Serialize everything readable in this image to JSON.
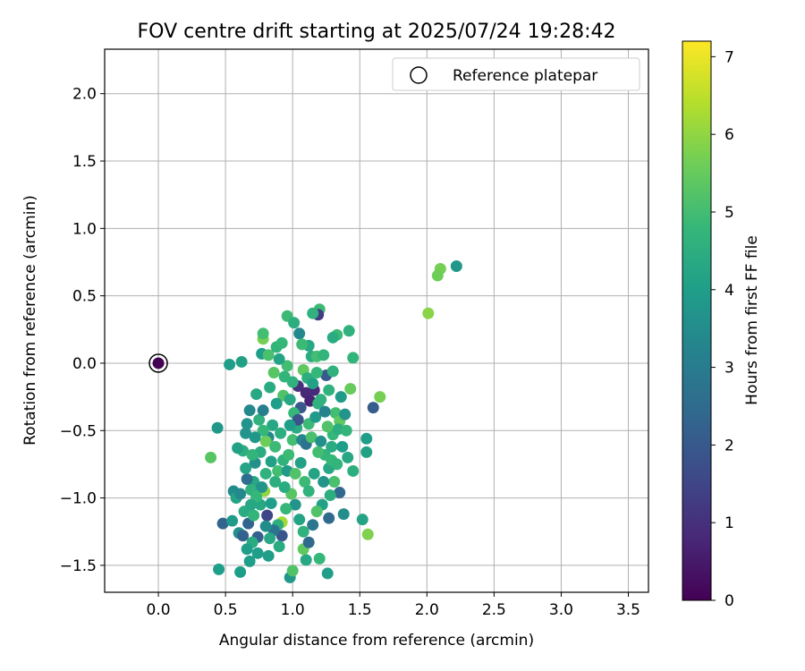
{
  "chart_data": {
    "type": "scatter",
    "title": "FOV centre drift starting at 2025/07/24 19:28:42",
    "xlabel": "Angular distance from reference (arcmin)",
    "ylabel": "Rotation from reference (arcmin)",
    "colorbar_label": "Hours from first FF file",
    "xlim": [
      -0.4,
      3.65
    ],
    "ylim": [
      -1.7,
      2.33
    ],
    "clim": [
      0,
      7.2
    ],
    "xticks": [
      0.0,
      0.5,
      1.0,
      1.5,
      2.0,
      2.5,
      3.0,
      3.5
    ],
    "xtick_labels": [
      "0.0",
      "0.5",
      "1.0",
      "1.5",
      "2.0",
      "2.5",
      "3.0",
      "3.5"
    ],
    "yticks": [
      -1.5,
      -1.0,
      -0.5,
      0.0,
      0.5,
      1.0,
      1.5,
      2.0
    ],
    "ytick_labels": [
      "−1.5",
      "−1.0",
      "−0.5",
      "0.0",
      "0.5",
      "1.0",
      "1.5",
      "2.0"
    ],
    "cticks": [
      0,
      1,
      2,
      3,
      4,
      5,
      6,
      7
    ],
    "ctick_labels": [
      "0",
      "1",
      "2",
      "3",
      "4",
      "5",
      "6",
      "7"
    ],
    "grid": true,
    "colormap": "viridis",
    "legend": {
      "position": "top-right",
      "label": "Reference platepar"
    },
    "reference_point": {
      "x": 0.0,
      "y": 0.0,
      "t": 0.0
    },
    "points": [
      {
        "x": 2.22,
        "y": 0.72,
        "t": 3.8
      },
      {
        "x": 2.1,
        "y": 0.7,
        "t": 5.7
      },
      {
        "x": 2.08,
        "y": 0.65,
        "t": 5.6
      },
      {
        "x": 2.01,
        "y": 0.37,
        "t": 5.9
      },
      {
        "x": 1.6,
        "y": -0.33,
        "t": 2.1
      },
      {
        "x": 1.65,
        "y": -0.25,
        "t": 5.7
      },
      {
        "x": 1.55,
        "y": -0.56,
        "t": 4.0
      },
      {
        "x": 1.55,
        "y": -0.66,
        "t": 4.1
      },
      {
        "x": 1.56,
        "y": -1.27,
        "t": 5.8
      },
      {
        "x": 1.52,
        "y": -1.16,
        "t": 4.2
      },
      {
        "x": 1.45,
        "y": -0.8,
        "t": 4.5
      },
      {
        "x": 1.45,
        "y": 0.04,
        "t": 4.7
      },
      {
        "x": 1.42,
        "y": 0.24,
        "t": 4.6
      },
      {
        "x": 1.43,
        "y": -0.19,
        "t": 5.5
      },
      {
        "x": 1.38,
        "y": -1.12,
        "t": 3.5
      },
      {
        "x": 1.35,
        "y": -0.96,
        "t": 2.4
      },
      {
        "x": 1.33,
        "y": 0.21,
        "t": 4.9
      },
      {
        "x": 1.3,
        "y": 0.19,
        "t": 4.4
      },
      {
        "x": 1.27,
        "y": -1.15,
        "t": 2.5
      },
      {
        "x": 1.26,
        "y": -1.56,
        "t": 4.0
      },
      {
        "x": 1.2,
        "y": 0.4,
        "t": 4.9
      },
      {
        "x": 1.19,
        "y": 0.36,
        "t": 1.3
      },
      {
        "x": 1.15,
        "y": 0.37,
        "t": 4.6
      },
      {
        "x": 1.12,
        "y": 0.13,
        "t": 4.3
      },
      {
        "x": 1.2,
        "y": -1.45,
        "t": 4.8
      },
      {
        "x": 1.1,
        "y": -1.46,
        "t": 4.3
      },
      {
        "x": 1.08,
        "y": -1.38,
        "t": 5.4
      },
      {
        "x": 0.98,
        "y": -1.59,
        "t": 3.8
      },
      {
        "x": 1.0,
        "y": -1.54,
        "t": 5.2
      },
      {
        "x": 0.92,
        "y": -1.18,
        "t": 6.2
      },
      {
        "x": 0.89,
        "y": -1.2,
        "t": 4.5
      },
      {
        "x": 0.82,
        "y": -1.43,
        "t": 4.0
      },
      {
        "x": 0.74,
        "y": -1.41,
        "t": 4.0
      },
      {
        "x": 0.68,
        "y": -1.47,
        "t": 4.0
      },
      {
        "x": 0.61,
        "y": -1.55,
        "t": 4.0
      },
      {
        "x": 0.45,
        "y": -1.53,
        "t": 4.0
      },
      {
        "x": 0.48,
        "y": -1.19,
        "t": 2.3
      },
      {
        "x": 0.55,
        "y": -1.17,
        "t": 3.9
      },
      {
        "x": 0.6,
        "y": -1.26,
        "t": 3.6
      },
      {
        "x": 0.67,
        "y": -1.19,
        "t": 2.3
      },
      {
        "x": 0.63,
        "y": -1.28,
        "t": 2.2
      },
      {
        "x": 0.44,
        "y": -0.48,
        "t": 3.8
      },
      {
        "x": 0.39,
        "y": -0.7,
        "t": 5.3
      },
      {
        "x": 0.53,
        "y": -0.01,
        "t": 4.0
      },
      {
        "x": 0.62,
        "y": 0.01,
        "t": 4.1
      },
      {
        "x": 0.66,
        "y": -0.45,
        "t": 3.7
      },
      {
        "x": 0.65,
        "y": -0.52,
        "t": 3.7
      },
      {
        "x": 0.63,
        "y": -0.65,
        "t": 4.5
      },
      {
        "x": 0.68,
        "y": -0.35,
        "t": 3.4
      },
      {
        "x": 0.73,
        "y": -0.23,
        "t": 4.3
      },
      {
        "x": 0.77,
        "y": 0.07,
        "t": 4.0
      },
      {
        "x": 0.78,
        "y": 0.18,
        "t": 5.7
      },
      {
        "x": 0.78,
        "y": 0.22,
        "t": 5.0
      },
      {
        "x": 0.82,
        "y": 0.06,
        "t": 5.1
      },
      {
        "x": 0.88,
        "y": 0.12,
        "t": 4.7
      },
      {
        "x": 0.92,
        "y": 0.15,
        "t": 4.8
      },
      {
        "x": 0.96,
        "y": 0.35,
        "t": 4.9
      },
      {
        "x": 1.01,
        "y": 0.3,
        "t": 4.5
      },
      {
        "x": 1.05,
        "y": 0.22,
        "t": 3.4
      },
      {
        "x": 1.07,
        "y": 0.14,
        "t": 4.9
      },
      {
        "x": 1.14,
        "y": 0.05,
        "t": 4.4
      },
      {
        "x": 1.18,
        "y": 0.05,
        "t": 5.0
      },
      {
        "x": 1.23,
        "y": 0.06,
        "t": 4.7
      },
      {
        "x": 1.25,
        "y": -0.09,
        "t": 2.0
      },
      {
        "x": 1.3,
        "y": -0.06,
        "t": 4.6
      },
      {
        "x": 1.27,
        "y": -0.2,
        "t": 4.6
      },
      {
        "x": 1.32,
        "y": -0.37,
        "t": 5.0
      },
      {
        "x": 1.35,
        "y": -0.43,
        "t": 5.4
      },
      {
        "x": 1.3,
        "y": -0.53,
        "t": 4.8
      },
      {
        "x": 1.34,
        "y": -0.49,
        "t": 4.5
      },
      {
        "x": 1.04,
        "y": -0.17,
        "t": 1.0
      },
      {
        "x": 1.1,
        "y": -0.22,
        "t": 0.8
      },
      {
        "x": 1.13,
        "y": -0.28,
        "t": 0.7
      },
      {
        "x": 1.16,
        "y": -0.2,
        "t": 0.8
      },
      {
        "x": 1.06,
        "y": -0.33,
        "t": 2.0
      },
      {
        "x": 1.0,
        "y": -0.14,
        "t": 4.6
      },
      {
        "x": 0.96,
        "y": -0.02,
        "t": 5.0
      },
      {
        "x": 0.93,
        "y": -0.24,
        "t": 5.2
      },
      {
        "x": 0.88,
        "y": -0.3,
        "t": 4.0
      },
      {
        "x": 0.85,
        "y": -0.46,
        "t": 4.3
      },
      {
        "x": 0.82,
        "y": -0.55,
        "t": 3.4
      },
      {
        "x": 0.8,
        "y": -0.58,
        "t": 5.6
      },
      {
        "x": 0.78,
        "y": -0.5,
        "t": 4.8
      },
      {
        "x": 0.76,
        "y": -0.66,
        "t": 4.4
      },
      {
        "x": 0.72,
        "y": -0.74,
        "t": 3.6
      },
      {
        "x": 0.71,
        "y": -0.88,
        "t": 4.3
      },
      {
        "x": 0.69,
        "y": -0.94,
        "t": 4.6
      },
      {
        "x": 0.66,
        "y": -0.86,
        "t": 2.6
      },
      {
        "x": 0.59,
        "y": -0.63,
        "t": 4.1
      },
      {
        "x": 0.56,
        "y": -0.95,
        "t": 3.5
      },
      {
        "x": 0.58,
        "y": -1.0,
        "t": 4.2
      },
      {
        "x": 0.64,
        "y": -1.1,
        "t": 4.4
      },
      {
        "x": 0.71,
        "y": -1.13,
        "t": 4.7
      },
      {
        "x": 0.76,
        "y": -1.05,
        "t": 4.3
      },
      {
        "x": 0.79,
        "y": -0.95,
        "t": 6.0
      },
      {
        "x": 0.81,
        "y": -1.13,
        "t": 1.5
      },
      {
        "x": 0.84,
        "y": -1.04,
        "t": 4.0
      },
      {
        "x": 0.87,
        "y": -0.88,
        "t": 4.5
      },
      {
        "x": 0.89,
        "y": -0.8,
        "t": 5.0
      },
      {
        "x": 0.93,
        "y": -0.72,
        "t": 4.6
      },
      {
        "x": 0.97,
        "y": -0.68,
        "t": 4.9
      },
      {
        "x": 1.0,
        "y": -0.57,
        "t": 5.0
      },
      {
        "x": 1.03,
        "y": -0.48,
        "t": 4.4
      },
      {
        "x": 1.07,
        "y": -0.57,
        "t": 3.3
      },
      {
        "x": 1.1,
        "y": -0.6,
        "t": 2.7
      },
      {
        "x": 1.12,
        "y": -0.45,
        "t": 4.9
      },
      {
        "x": 1.14,
        "y": -0.55,
        "t": 5.1
      },
      {
        "x": 1.17,
        "y": -0.4,
        "t": 3.9
      },
      {
        "x": 1.19,
        "y": -0.3,
        "t": 4.6
      },
      {
        "x": 1.21,
        "y": -0.58,
        "t": 3.6
      },
      {
        "x": 1.24,
        "y": -0.68,
        "t": 4.7
      },
      {
        "x": 1.27,
        "y": -0.78,
        "t": 4.3
      },
      {
        "x": 1.29,
        "y": -0.72,
        "t": 4.8
      },
      {
        "x": 1.31,
        "y": -0.88,
        "t": 5.1
      },
      {
        "x": 1.28,
        "y": -0.98,
        "t": 4.5
      },
      {
        "x": 1.22,
        "y": -1.05,
        "t": 4.1
      },
      {
        "x": 1.18,
        "y": -1.1,
        "t": 5.2
      },
      {
        "x": 1.15,
        "y": -1.2,
        "t": 2.9
      },
      {
        "x": 1.12,
        "y": -1.33,
        "t": 2.5
      },
      {
        "x": 1.08,
        "y": -1.25,
        "t": 4.6
      },
      {
        "x": 1.05,
        "y": -1.16,
        "t": 4.2
      },
      {
        "x": 1.02,
        "y": -1.05,
        "t": 3.7
      },
      {
        "x": 0.99,
        "y": -0.97,
        "t": 5.3
      },
      {
        "x": 0.95,
        "y": -1.08,
        "t": 4.8
      },
      {
        "x": 0.92,
        "y": -1.28,
        "t": 1.9
      },
      {
        "x": 0.9,
        "y": -1.36,
        "t": 4.4
      },
      {
        "x": 0.86,
        "y": -1.24,
        "t": 2.7
      },
      {
        "x": 0.83,
        "y": -1.3,
        "t": 4.3
      },
      {
        "x": 0.8,
        "y": -1.21,
        "t": 3.5
      },
      {
        "x": 0.74,
        "y": -1.29,
        "t": 2.2
      },
      {
        "x": 0.7,
        "y": -1.33,
        "t": 4.4
      },
      {
        "x": 0.66,
        "y": -1.38,
        "t": 4.0
      },
      {
        "x": 0.72,
        "y": -0.55,
        "t": 3.8
      },
      {
        "x": 0.75,
        "y": -0.42,
        "t": 4.6
      },
      {
        "x": 0.78,
        "y": -0.35,
        "t": 3.1
      },
      {
        "x": 0.83,
        "y": -0.18,
        "t": 4.4
      },
      {
        "x": 0.86,
        "y": -0.07,
        "t": 5.3
      },
      {
        "x": 0.9,
        "y": 0.03,
        "t": 4.2
      },
      {
        "x": 0.94,
        "y": -0.1,
        "t": 4.7
      },
      {
        "x": 0.98,
        "y": -0.27,
        "t": 4.3
      },
      {
        "x": 1.01,
        "y": -0.37,
        "t": 4.8
      },
      {
        "x": 1.04,
        "y": -0.42,
        "t": 1.8
      },
      {
        "x": 1.08,
        "y": -0.05,
        "t": 5.4
      },
      {
        "x": 1.11,
        "y": -0.11,
        "t": 4.5
      },
      {
        "x": 1.15,
        "y": -0.15,
        "t": 4.1
      },
      {
        "x": 1.18,
        "y": -0.07,
        "t": 4.8
      },
      {
        "x": 1.21,
        "y": -0.27,
        "t": 4.6
      },
      {
        "x": 1.24,
        "y": -0.36,
        "t": 3.2
      },
      {
        "x": 1.26,
        "y": -0.47,
        "t": 5.2
      },
      {
        "x": 1.29,
        "y": -0.62,
        "t": 4.4
      },
      {
        "x": 1.33,
        "y": -0.75,
        "t": 4.7
      },
      {
        "x": 1.37,
        "y": -0.62,
        "t": 4.0
      },
      {
        "x": 1.36,
        "y": -0.25,
        "t": 3.9
      },
      {
        "x": 1.39,
        "y": -0.38,
        "t": 3.7
      },
      {
        "x": 1.4,
        "y": -0.5,
        "t": 4.7
      },
      {
        "x": 1.41,
        "y": -0.7,
        "t": 4.3
      },
      {
        "x": 0.96,
        "y": -0.8,
        "t": 3.9
      },
      {
        "x": 0.94,
        "y": -0.92,
        "t": 4.4
      },
      {
        "x": 1.06,
        "y": -0.74,
        "t": 4.1
      },
      {
        "x": 1.09,
        "y": -0.88,
        "t": 4.9
      },
      {
        "x": 1.12,
        "y": -0.95,
        "t": 4.6
      },
      {
        "x": 1.16,
        "y": -0.82,
        "t": 4.2
      },
      {
        "x": 1.19,
        "y": -0.66,
        "t": 5.0
      },
      {
        "x": 1.23,
        "y": -0.88,
        "t": 3.7
      },
      {
        "x": 1.02,
        "y": -0.82,
        "t": 5.2
      },
      {
        "x": 0.98,
        "y": -0.46,
        "t": 4.0
      },
      {
        "x": 0.91,
        "y": -0.52,
        "t": 4.5
      },
      {
        "x": 0.87,
        "y": -0.62,
        "t": 4.9
      },
      {
        "x": 0.84,
        "y": -0.73,
        "t": 4.1
      },
      {
        "x": 0.8,
        "y": -0.82,
        "t": 4.6
      },
      {
        "x": 0.77,
        "y": -0.92,
        "t": 3.7
      },
      {
        "x": 0.73,
        "y": -0.99,
        "t": 4.8
      },
      {
        "x": 0.69,
        "y": -1.05,
        "t": 4.3
      },
      {
        "x": 0.61,
        "y": -0.97,
        "t": 3.4
      },
      {
        "x": 0.65,
        "y": -0.78,
        "t": 4.2
      },
      {
        "x": 0.7,
        "y": -0.68,
        "t": 4.7
      }
    ]
  }
}
